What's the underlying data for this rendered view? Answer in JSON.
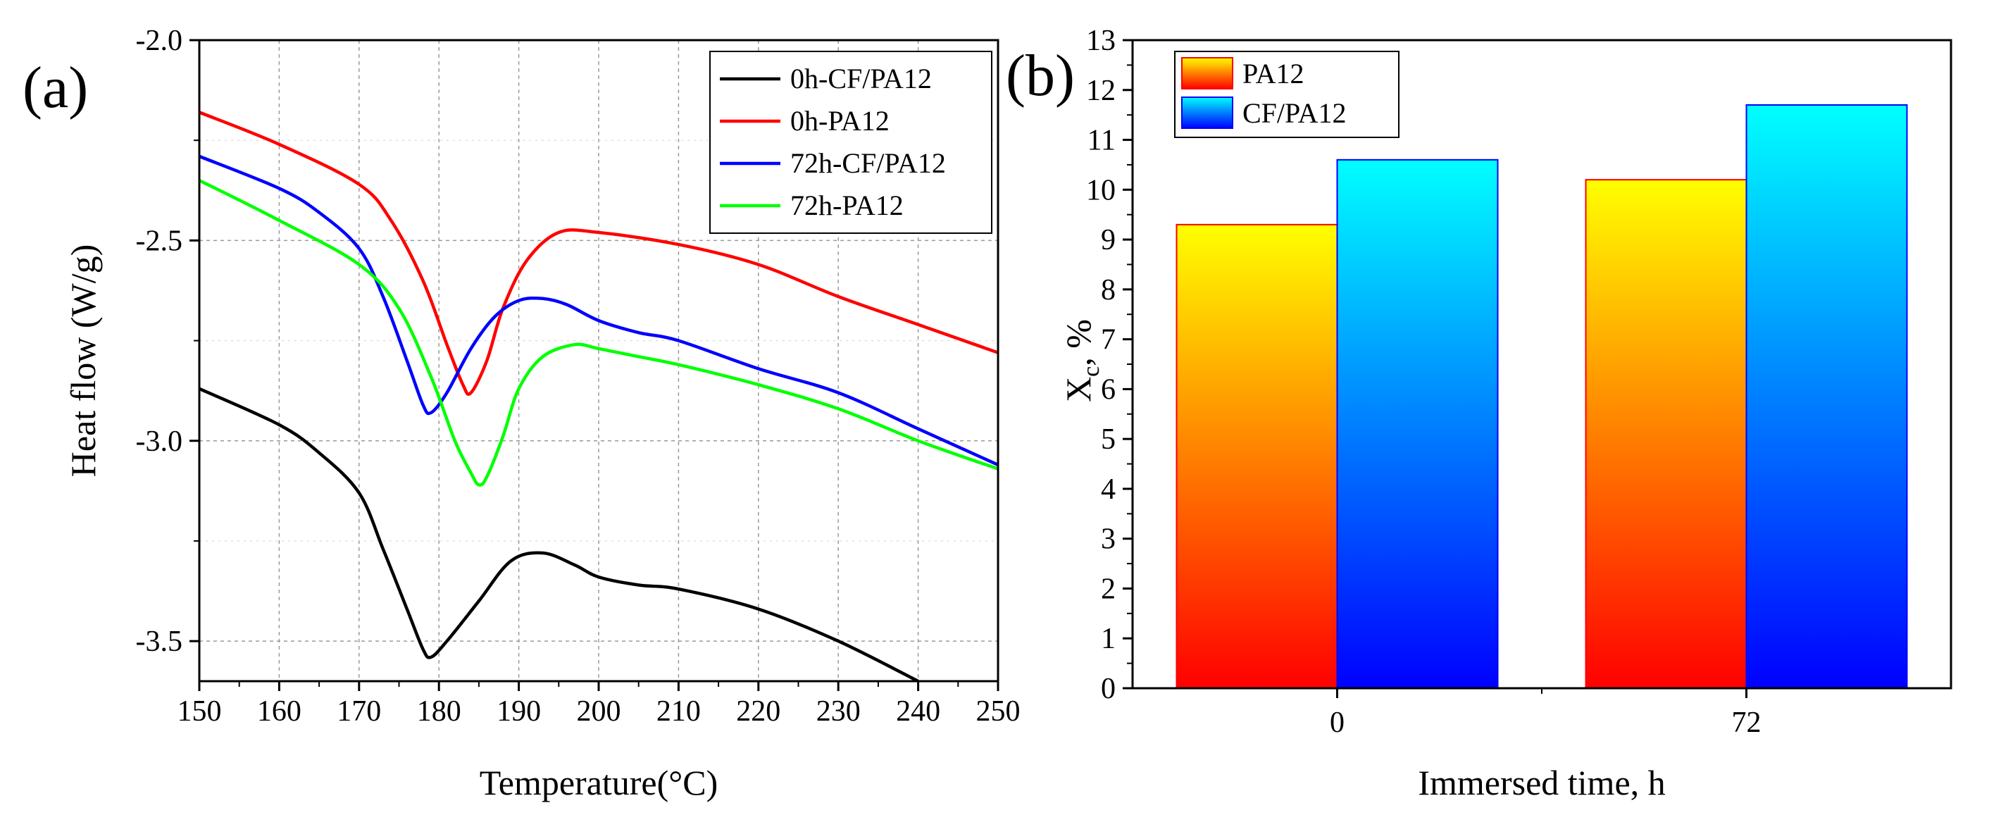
{
  "chart_data": [
    {
      "panel": "(a)",
      "type": "line",
      "xlabel": "Temperature(°C)",
      "ylabel": "Heat flow (W/g)",
      "xlim": [
        150,
        250
      ],
      "ylim": [
        -3.6,
        -2.0
      ],
      "xticks": [
        150,
        160,
        170,
        180,
        190,
        200,
        210,
        220,
        230,
        240,
        250
      ],
      "yticks": [
        -2.0,
        -2.5,
        -3.0,
        -3.5
      ],
      "ytick_labels": [
        "-2.0",
        "-2.5",
        "-3.0",
        "-3.5"
      ],
      "grid": true,
      "legend_position": "top-right",
      "series": [
        {
          "name": "0h-CF/PA12",
          "color": "#000000",
          "x": [
            150,
            160,
            165,
            170,
            173,
            176,
            178,
            179,
            181,
            185,
            189,
            193,
            197,
            200,
            205,
            210,
            220,
            230,
            240
          ],
          "y": [
            -2.87,
            -2.96,
            -3.03,
            -3.13,
            -3.27,
            -3.42,
            -3.52,
            -3.54,
            -3.5,
            -3.4,
            -3.3,
            -3.28,
            -3.31,
            -3.34,
            -3.36,
            -3.37,
            -3.42,
            -3.5,
            -3.6
          ]
        },
        {
          "name": "0h-PA12",
          "color": "#ff0000",
          "x": [
            150,
            160,
            170,
            174,
            178,
            181,
            183,
            184,
            186,
            188,
            191,
            195,
            200,
            210,
            220,
            230,
            240,
            250
          ],
          "y": [
            -2.18,
            -2.26,
            -2.36,
            -2.45,
            -2.6,
            -2.76,
            -2.86,
            -2.88,
            -2.8,
            -2.67,
            -2.55,
            -2.48,
            -2.48,
            -2.51,
            -2.56,
            -2.64,
            -2.71,
            -2.78
          ]
        },
        {
          "name": "72h-CF/PA12",
          "color": "#0000ff",
          "x": [
            150,
            160,
            165,
            170,
            173,
            176,
            178,
            179,
            181,
            184,
            187,
            190,
            193,
            196,
            200,
            205,
            210,
            220,
            230,
            240,
            250
          ],
          "y": [
            -2.29,
            -2.37,
            -2.43,
            -2.52,
            -2.64,
            -2.8,
            -2.91,
            -2.93,
            -2.88,
            -2.77,
            -2.69,
            -2.65,
            -2.645,
            -2.66,
            -2.7,
            -2.73,
            -2.75,
            -2.82,
            -2.88,
            -2.97,
            -3.06
          ]
        },
        {
          "name": "72h-PA12",
          "color": "#00ff00",
          "x": [
            150,
            160,
            170,
            175,
            179,
            182,
            184,
            185,
            186,
            188,
            190,
            193,
            197,
            200,
            205,
            210,
            220,
            230,
            240,
            250
          ],
          "y": [
            -2.35,
            -2.45,
            -2.56,
            -2.67,
            -2.84,
            -3.0,
            -3.08,
            -3.11,
            -3.09,
            -2.99,
            -2.87,
            -2.79,
            -2.76,
            -2.77,
            -2.79,
            -2.81,
            -2.86,
            -2.92,
            -3.0,
            -3.07
          ]
        }
      ]
    },
    {
      "panel": "(b)",
      "type": "bar",
      "xlabel": "Immersed time, h",
      "ylabel_main": "X",
      "ylabel_sub": "c",
      "ylabel_suffix": ", %",
      "categories": [
        "0",
        "72"
      ],
      "ylim": [
        0,
        13
      ],
      "yticks": [
        0,
        1,
        2,
        3,
        4,
        5,
        6,
        7,
        8,
        9,
        10,
        11,
        12,
        13
      ],
      "legend_position": "top-left",
      "series": [
        {
          "name": "PA12",
          "values": [
            9.3,
            10.2
          ],
          "gradient_top": "#ffff00",
          "gradient_bottom": "#ff0000",
          "edge": "#ff0000"
        },
        {
          "name": "CF/PA12",
          "values": [
            10.6,
            11.7
          ],
          "gradient_top": "#00ffff",
          "gradient_bottom": "#0000ff",
          "edge": "#0000ff"
        }
      ]
    }
  ]
}
